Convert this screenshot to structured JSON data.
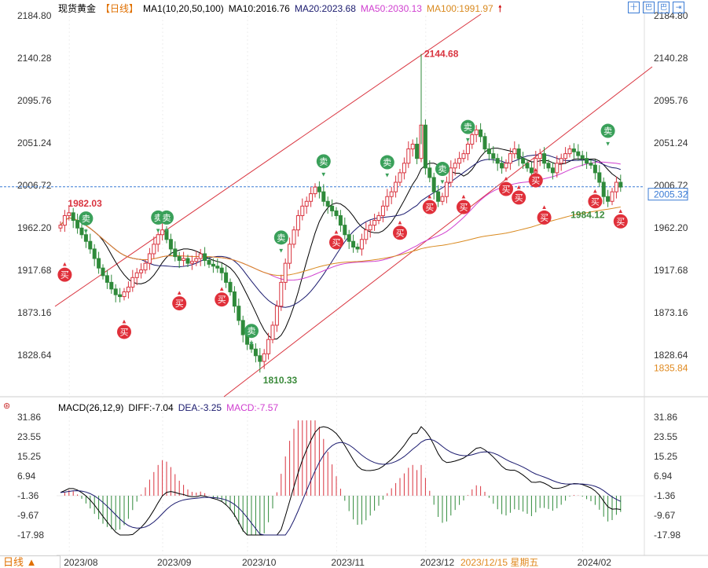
{
  "header": {
    "instrument": "现货黄金",
    "period": "【日线】",
    "indicator": "MA1(10,20,50,100)",
    "ma10": "MA10:2016.76",
    "ma20": "MA20:2023.68",
    "ma50": "MA50:2030.13",
    "ma100": "MA100:1991.97"
  },
  "macd_header": {
    "name": "MACD(26,12,9)",
    "diff": "DIFF:-7.04",
    "dea": "DEA:-3.25",
    "macd": "MACD:-7.57"
  },
  "toolbar": [
    "十",
    "巴",
    "巴",
    "⇥"
  ],
  "period_button": "日线 ▲",
  "colors": {
    "up": "#d9343f",
    "down": "#2f8a3a",
    "ma10": "#000000",
    "ma20": "#1a1a6e",
    "ma50": "#d040d0",
    "ma100": "#d98a20",
    "channel": "#d9343f",
    "buy": "#e0303a",
    "sell": "#3aa05a"
  },
  "chart_data": {
    "type": "candlestick",
    "price_axis": {
      "ticks": [
        "2184.80",
        "2140.28",
        "2095.76",
        "2051.24",
        "2006.72",
        "1962.20",
        "1917.68",
        "1873.16",
        "1828.64"
      ],
      "min": 1828.64,
      "max": 2184.8
    },
    "macd_axis": {
      "ticks": [
        "31.86",
        "23.55",
        "15.25",
        "6.94",
        "-1.36",
        "-9.67",
        "-17.98"
      ],
      "min": -17.98,
      "max": 31.86
    },
    "x_labels": [
      {
        "i": 3,
        "label": "2023/08"
      },
      {
        "i": 25,
        "label": "2023/09"
      },
      {
        "i": 45,
        "label": "2023/10"
      },
      {
        "i": 66,
        "label": "2023/11"
      },
      {
        "i": 87,
        "label": "2023/12"
      },
      {
        "i": 124,
        "label": "2024/02"
      }
    ],
    "crosshair_date": "2023/12/15 星期五",
    "closes": [
      1965,
      1975,
      1978,
      1970,
      1962,
      1955,
      1948,
      1940,
      1930,
      1920,
      1912,
      1905,
      1898,
      1892,
      1890,
      1895,
      1900,
      1910,
      1915,
      1918,
      1925,
      1935,
      1945,
      1955,
      1960,
      1950,
      1940,
      1932,
      1928,
      1930,
      1925,
      1927,
      1930,
      1935,
      1928,
      1924,
      1922,
      1920,
      1915,
      1905,
      1895,
      1880,
      1865,
      1850,
      1840,
      1835,
      1828,
      1822,
      1830,
      1845,
      1860,
      1880,
      1905,
      1925,
      1945,
      1960,
      1975,
      1985,
      1990,
      1998,
      2005,
      2000,
      1990,
      1985,
      1980,
      1975,
      1965,
      1955,
      1948,
      1942,
      1940,
      1950,
      1960,
      1965,
      1970,
      1975,
      1985,
      1995,
      2000,
      2010,
      2020,
      2030,
      2045,
      2050,
      2035,
      2070,
      2025,
      2015,
      2000,
      1990,
      1995,
      2010,
      2025,
      2030,
      2035,
      2040,
      2050,
      2060,
      2065,
      2058,
      2045,
      2040,
      2035,
      2030,
      2025,
      2030,
      2040,
      2045,
      2035,
      2030,
      2025,
      2020,
      2035,
      2040,
      2030,
      2025,
      2020,
      2030,
      2035,
      2040,
      2045,
      2042,
      2038,
      2035,
      2030,
      2028,
      2020,
      2010,
      1995,
      1990,
      2000,
      2010,
      2005
    ],
    "annotations": [
      {
        "i": 1,
        "price": 1982.03,
        "label": "1982.03"
      },
      {
        "i": 85,
        "price": 2144.68,
        "label": "2144.68"
      },
      {
        "i": 47,
        "price": 1810.33,
        "label": "1810.33"
      },
      {
        "i": 129,
        "price": 1984.12,
        "label": "1984.12"
      }
    ],
    "last_price": "2005.32",
    "low_tag": "1835.84",
    "signals": [
      {
        "i": 6,
        "price": 1972,
        "type": "sell",
        "label": "卖"
      },
      {
        "i": 23,
        "price": 1973,
        "type": "sell",
        "label": "卖"
      },
      {
        "i": 25,
        "price": 1973,
        "type": "sell",
        "label": "卖"
      },
      {
        "i": 52,
        "price": 1952,
        "type": "sell",
        "label": "卖"
      },
      {
        "i": 62,
        "price": 2032,
        "type": "sell",
        "label": "卖"
      },
      {
        "i": 77,
        "price": 2031,
        "type": "sell",
        "label": "卖"
      },
      {
        "i": 90,
        "price": 2024,
        "type": "sell",
        "label": "卖"
      },
      {
        "i": 96,
        "price": 2068,
        "type": "sell",
        "label": "卖"
      },
      {
        "i": 129,
        "price": 2064,
        "type": "sell",
        "label": "卖"
      },
      {
        "i": 45,
        "price": 1854,
        "type": "sell",
        "label": "卖"
      },
      {
        "i": 1,
        "price": 1913,
        "type": "buy",
        "label": "买"
      },
      {
        "i": 15,
        "price": 1853,
        "type": "buy",
        "label": "买"
      },
      {
        "i": 28,
        "price": 1883,
        "type": "buy",
        "label": "买"
      },
      {
        "i": 38,
        "price": 1887,
        "type": "buy",
        "label": "买"
      },
      {
        "i": 65,
        "price": 1947,
        "type": "buy",
        "label": "买"
      },
      {
        "i": 80,
        "price": 1957,
        "type": "buy",
        "label": "买"
      },
      {
        "i": 87,
        "price": 1984,
        "type": "buy",
        "label": "买"
      },
      {
        "i": 95,
        "price": 1984,
        "type": "buy",
        "label": "买"
      },
      {
        "i": 105,
        "price": 2003,
        "type": "buy",
        "label": "买"
      },
      {
        "i": 108,
        "price": 1994,
        "type": "buy",
        "label": "买"
      },
      {
        "i": 112,
        "price": 2012,
        "type": "buy",
        "label": "买"
      },
      {
        "i": 114,
        "price": 1973,
        "type": "buy",
        "label": "买"
      },
      {
        "i": 126,
        "price": 1990,
        "type": "buy",
        "label": "买"
      },
      {
        "i": 132,
        "price": 1969,
        "type": "buy",
        "label": "买"
      }
    ]
  }
}
